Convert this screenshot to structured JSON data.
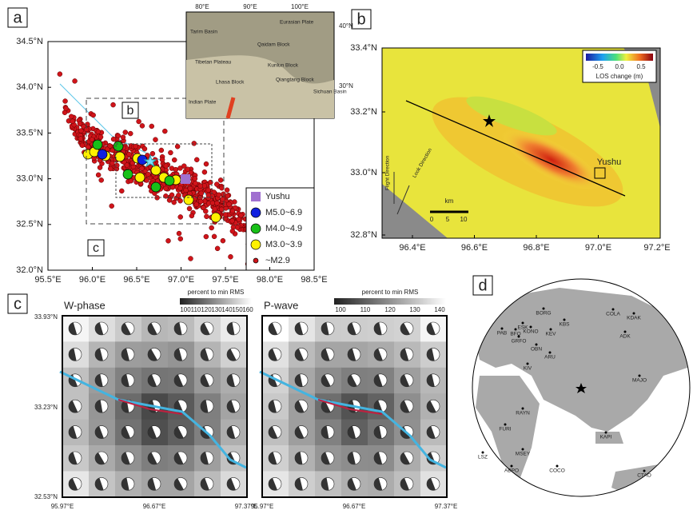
{
  "panel_labels": [
    "a",
    "b",
    "c",
    "d"
  ],
  "panel_a": {
    "xticks": [
      "95.5°E",
      "96.0°E",
      "96.5°E",
      "97.0°E",
      "97.5°E",
      "98.0°E",
      "98.5°E"
    ],
    "yticks": [
      "34.5°N",
      "34.0°N",
      "33.5°N",
      "33.0°N",
      "32.5°N",
      "32.0°N"
    ],
    "box_labels": [
      "b",
      "c"
    ],
    "legend": [
      "Yushu",
      "M5.0~6.9",
      "M4.0~4.9",
      "M3.0~3.9",
      "~M2.9"
    ],
    "inset": {
      "lon_labels": [
        "80°E",
        "90°E",
        "100°E"
      ],
      "lat_labels": [
        "40°N",
        "30°N"
      ],
      "places": [
        "Tarim Basin",
        "Eurasian Plate",
        "Qaidam Block",
        "Tibetan Plateau",
        "Kunlun Block",
        "Lhasa Block",
        "Qiangtang Block",
        "Indian Plate",
        "Sichuan Basin"
      ]
    }
  },
  "panel_b": {
    "xticks": [
      "96.4°E",
      "96.6°E",
      "96.8°E",
      "97.0°E",
      "97.2°E"
    ],
    "yticks": [
      "33.4°N",
      "33.2°N",
      "33.0°N",
      "32.8°N"
    ],
    "colorbar_title": "LOS change (m)",
    "colorbar_ticks": [
      "-0.5",
      "0.0",
      "0.5"
    ],
    "place": "Yushu",
    "scale_unit": "km",
    "scale_ticks": [
      "0",
      "5",
      "10"
    ],
    "look": "Look Direction",
    "flight": "Flight Direction"
  },
  "panel_c": {
    "titles": [
      "W-phase",
      "P-wave"
    ],
    "colorbar_title": "percent to min RMS",
    "colorbar_ticks_w": [
      "100",
      "110",
      "120",
      "130",
      "140",
      "150",
      "160"
    ],
    "colorbar_ticks_p": [
      "100",
      "110",
      "120",
      "130",
      "140"
    ],
    "yticks": [
      "33.93°N",
      "33.23°N",
      "32.53°N"
    ],
    "xticks": [
      "95.97°E",
      "96.67°E",
      "97.37°E"
    ]
  },
  "panel_d": {
    "stations": [
      "BORG",
      "KBS",
      "COLA",
      "KDAK",
      "ESK",
      "PAB",
      "BFO",
      "KONO",
      "KEV",
      "GRFO",
      "ADK",
      "OBN",
      "ARU",
      "KIV",
      "MAJO",
      "RAYN",
      "FURI",
      "LSZ",
      "MSEY",
      "ABPO",
      "COCO",
      "KAPI",
      "CTAO"
    ]
  }
}
